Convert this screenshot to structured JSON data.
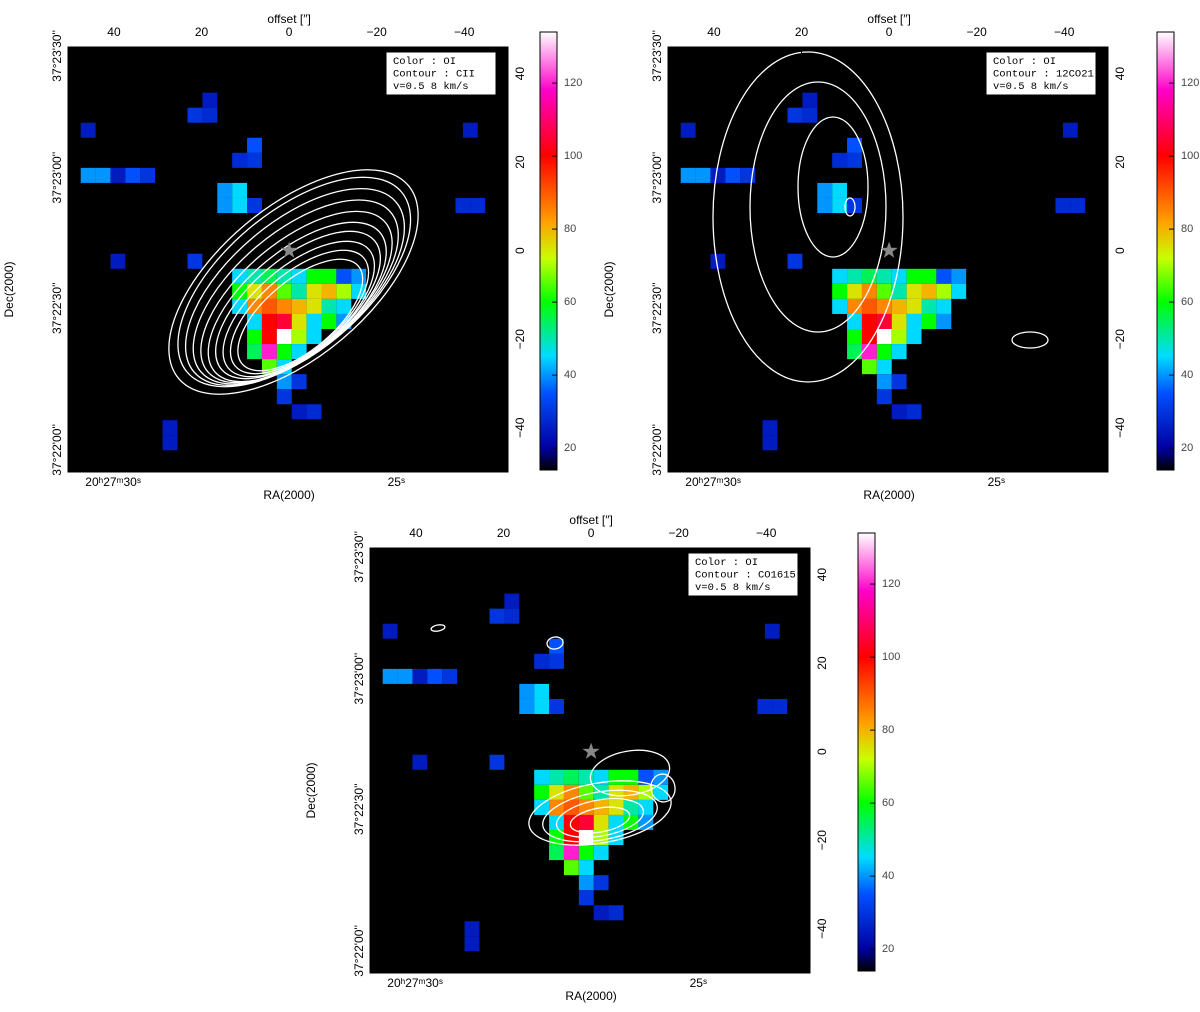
{
  "chart_data": [
    {
      "type": "heatmap",
      "top_label": "offset [″]",
      "xlabel": "RA(2000)",
      "ylabel": "Dec(2000)",
      "annotation": [
        "Color : OI",
        "Contour : CII",
        "v=0.5 8 km/s"
      ],
      "xlim": [
        50.5,
        -50
      ],
      "ylim": [
        -50,
        46
      ],
      "xticks": [
        40,
        20,
        0,
        {
          "value": -20,
          "label": "−20"
        },
        {
          "value": -40,
          "label": "−40"
        }
      ],
      "yticks": [
        40,
        20,
        0,
        {
          "value": -20,
          "label": "−20"
        },
        {
          "value": -40,
          "label": "−40"
        }
      ],
      "ra_ticks": [
        {
          "value": 40.2,
          "label": "20ʰ27ᵐ30ˢ"
        },
        {
          "value": -24.5,
          "label": "25ˢ"
        }
      ],
      "dec_ticks": [
        {
          "value": 44,
          "label": "37°23'30''"
        },
        {
          "value": 16.5,
          "label": "37°23'00''"
        },
        {
          "value": -13,
          "label": "37°22'30''"
        },
        {
          "value": -45,
          "label": "37°22'00''"
        }
      ],
      "clim": [
        14,
        134
      ],
      "cticks": [
        20,
        40,
        60,
        80,
        100,
        120
      ],
      "x": [
        11.3,
        7.9,
        4.5,
        1.1,
        -2.3,
        -5.7,
        -9.1,
        -12.5,
        -15.9,
        11.3,
        7.9,
        4.5,
        1.1,
        -2.3,
        -5.7,
        -9.1,
        -12.5,
        -15.9,
        11.3,
        7.9,
        4.5,
        1.1,
        -2.3,
        -5.7,
        -9.1,
        -12.5,
        7.9,
        4.5,
        1.1,
        -2.3,
        -5.7,
        -9.1,
        -12.5,
        7.9,
        4.5,
        1.1,
        -2.3,
        -5.7,
        7.9,
        4.5,
        1.1,
        -2.3,
        4.5,
        1.1,
        1.1,
        -2.3,
        1.1,
        -2.3,
        -5.7,
        14.7,
        11.3,
        7.9,
        14.7,
        11.3,
        11.3,
        7.9,
        7.9,
        21.5,
        18.1,
        18.1,
        45.9,
        42.5,
        39.1,
        35.7,
        32.3,
        45.9,
        -39.7,
        -43.1,
        -41.4,
        39.1,
        21.5,
        27.2,
        27.2
      ],
      "y": [
        -5.8,
        -5.8,
        -5.8,
        -5.8,
        -5.8,
        -5.8,
        -5.8,
        -5.8,
        -5.8,
        -9.2,
        -9.2,
        -9.2,
        -9.2,
        -9.2,
        -9.2,
        -9.2,
        -9.2,
        -9.2,
        -12.6,
        -12.6,
        -12.6,
        -12.6,
        -12.6,
        -12.6,
        -12.6,
        -12.6,
        -16,
        -16,
        -16,
        -16,
        -16,
        -16,
        -16,
        -19.4,
        -19.4,
        -19.4,
        -19.4,
        -19.4,
        -22.8,
        -22.8,
        -22.8,
        -22.8,
        -26.2,
        -26.2,
        -29.6,
        -29.6,
        -33,
        -36.4,
        -36.4,
        10.2,
        10.2,
        10.2,
        13.6,
        13.6,
        20.4,
        20.4,
        23.8,
        30.6,
        30.6,
        34,
        17,
        17,
        17,
        17,
        17,
        27.2,
        10.2,
        10.2,
        27.2,
        -2.4,
        -2.4,
        -40,
        -43.4
      ],
      "values": [
        45,
        50,
        55,
        50,
        45,
        60,
        60,
        35,
        40,
        60,
        75,
        85,
        65,
        50,
        75,
        80,
        70,
        45,
        45,
        85,
        90,
        85,
        80,
        75,
        50,
        45,
        45,
        100,
        105,
        75,
        45,
        60,
        40,
        60,
        100,
        134,
        70,
        45,
        55,
        120,
        60,
        45,
        65,
        45,
        40,
        30,
        30,
        25,
        28,
        40,
        45,
        30,
        40,
        45,
        28,
        30,
        35,
        30,
        28,
        25,
        40,
        40,
        25,
        35,
        30,
        25,
        28,
        28,
        25,
        25,
        30,
        25,
        25
      ]
    },
    {
      "type": "heatmap",
      "top_label": "offset [″]",
      "xlabel": "RA(2000)",
      "ylabel": "Dec(2000)",
      "annotation": [
        "Color : OI",
        "Contour : 12CO21",
        "v=0.5 8 km/s"
      ],
      "xlim": [
        50.5,
        -50
      ],
      "ylim": [
        -50,
        46
      ],
      "xticks": [
        40,
        20,
        0,
        {
          "value": -20,
          "label": "−20"
        },
        {
          "value": -40,
          "label": "−40"
        }
      ],
      "yticks": [
        40,
        20,
        0,
        {
          "value": -20,
          "label": "−20"
        },
        {
          "value": -40,
          "label": "−40"
        }
      ],
      "ra_ticks": [
        {
          "value": 40.2,
          "label": "20ʰ27ᵐ30ˢ"
        },
        {
          "value": -24.5,
          "label": "25ˢ"
        }
      ],
      "dec_ticks": [
        {
          "value": 44,
          "label": "37°23'30''"
        },
        {
          "value": 16.5,
          "label": "37°23'00''"
        },
        {
          "value": -13,
          "label": "37°22'30''"
        },
        {
          "value": -45,
          "label": "37°22'00''"
        }
      ],
      "clim": [
        14,
        134
      ],
      "cticks": [
        20,
        40,
        60,
        80,
        100,
        120
      ],
      "x": [
        11.3,
        7.9,
        4.5,
        1.1,
        -2.3,
        -5.7,
        -9.1,
        -12.5,
        -15.9,
        11.3,
        7.9,
        4.5,
        1.1,
        -2.3,
        -5.7,
        -9.1,
        -12.5,
        -15.9,
        11.3,
        7.9,
        4.5,
        1.1,
        -2.3,
        -5.7,
        -9.1,
        -12.5,
        7.9,
        4.5,
        1.1,
        -2.3,
        -5.7,
        -9.1,
        -12.5,
        7.9,
        4.5,
        1.1,
        -2.3,
        -5.7,
        7.9,
        4.5,
        1.1,
        -2.3,
        4.5,
        1.1,
        1.1,
        -2.3,
        1.1,
        -2.3,
        -5.7,
        14.7,
        11.3,
        7.9,
        14.7,
        11.3,
        11.3,
        7.9,
        7.9,
        21.5,
        18.1,
        18.1,
        45.9,
        42.5,
        39.1,
        35.7,
        32.3,
        45.9,
        -39.7,
        -43.1,
        -41.4,
        39.1,
        21.5,
        27.2,
        27.2
      ],
      "y": [
        -5.8,
        -5.8,
        -5.8,
        -5.8,
        -5.8,
        -5.8,
        -5.8,
        -5.8,
        -5.8,
        -9.2,
        -9.2,
        -9.2,
        -9.2,
        -9.2,
        -9.2,
        -9.2,
        -9.2,
        -9.2,
        -12.6,
        -12.6,
        -12.6,
        -12.6,
        -12.6,
        -12.6,
        -12.6,
        -12.6,
        -16,
        -16,
        -16,
        -16,
        -16,
        -16,
        -16,
        -19.4,
        -19.4,
        -19.4,
        -19.4,
        -19.4,
        -22.8,
        -22.8,
        -22.8,
        -22.8,
        -26.2,
        -26.2,
        -29.6,
        -29.6,
        -33,
        -36.4,
        -36.4,
        10.2,
        10.2,
        10.2,
        13.6,
        13.6,
        20.4,
        20.4,
        23.8,
        30.6,
        30.6,
        34,
        17,
        17,
        17,
        17,
        17,
        27.2,
        10.2,
        10.2,
        27.2,
        -2.4,
        -2.4,
        -40,
        -43.4
      ],
      "values": [
        45,
        50,
        55,
        50,
        45,
        60,
        60,
        35,
        40,
        60,
        75,
        85,
        65,
        50,
        75,
        80,
        70,
        45,
        45,
        85,
        90,
        85,
        80,
        75,
        50,
        45,
        45,
        100,
        105,
        75,
        45,
        60,
        40,
        60,
        100,
        134,
        70,
        45,
        55,
        120,
        60,
        45,
        65,
        45,
        40,
        30,
        30,
        25,
        28,
        40,
        45,
        30,
        40,
        45,
        28,
        30,
        35,
        30,
        28,
        25,
        40,
        40,
        25,
        35,
        30,
        25,
        28,
        28,
        25,
        25,
        30,
        25,
        25
      ]
    },
    {
      "type": "heatmap",
      "top_label": "offset [″]",
      "xlabel": "RA(2000)",
      "ylabel": "Dec(2000)",
      "annotation": [
        "Color : OI",
        "Contour : CO1615",
        "v=0.5 8 km/s"
      ],
      "xlim": [
        50.5,
        -50
      ],
      "ylim": [
        -50,
        46
      ],
      "xticks": [
        40,
        20,
        0,
        {
          "value": -20,
          "label": "−20"
        },
        {
          "value": -40,
          "label": "−40"
        }
      ],
      "yticks": [
        40,
        20,
        0,
        {
          "value": -20,
          "label": "−20"
        },
        {
          "value": -40,
          "label": "−40"
        }
      ],
      "ra_ticks": [
        {
          "value": 40.2,
          "label": "20ʰ27ᵐ30ˢ"
        },
        {
          "value": -24.5,
          "label": "25ˢ"
        }
      ],
      "dec_ticks": [
        {
          "value": 44,
          "label": "37°23'30''"
        },
        {
          "value": 16.5,
          "label": "37°23'00''"
        },
        {
          "value": -13,
          "label": "37°22'30''"
        },
        {
          "value": -45,
          "label": "37°22'00''"
        }
      ],
      "clim": [
        14,
        134
      ],
      "cticks": [
        20,
        40,
        60,
        80,
        100,
        120
      ],
      "x": [
        11.3,
        7.9,
        4.5,
        1.1,
        -2.3,
        -5.7,
        -9.1,
        -12.5,
        -15.9,
        11.3,
        7.9,
        4.5,
        1.1,
        -2.3,
        -5.7,
        -9.1,
        -12.5,
        -15.9,
        11.3,
        7.9,
        4.5,
        1.1,
        -2.3,
        -5.7,
        -9.1,
        -12.5,
        7.9,
        4.5,
        1.1,
        -2.3,
        -5.7,
        -9.1,
        -12.5,
        7.9,
        4.5,
        1.1,
        -2.3,
        -5.7,
        7.9,
        4.5,
        1.1,
        -2.3,
        4.5,
        1.1,
        1.1,
        -2.3,
        1.1,
        -2.3,
        -5.7,
        14.7,
        11.3,
        7.9,
        14.7,
        11.3,
        11.3,
        7.9,
        7.9,
        21.5,
        18.1,
        18.1,
        45.9,
        42.5,
        39.1,
        35.7,
        32.3,
        45.9,
        -39.7,
        -43.1,
        -41.4,
        39.1,
        21.5,
        27.2,
        27.2
      ],
      "y": [
        -5.8,
        -5.8,
        -5.8,
        -5.8,
        -5.8,
        -5.8,
        -5.8,
        -5.8,
        -5.8,
        -9.2,
        -9.2,
        -9.2,
        -9.2,
        -9.2,
        -9.2,
        -9.2,
        -9.2,
        -9.2,
        -12.6,
        -12.6,
        -12.6,
        -12.6,
        -12.6,
        -12.6,
        -12.6,
        -12.6,
        -16,
        -16,
        -16,
        -16,
        -16,
        -16,
        -16,
        -19.4,
        -19.4,
        -19.4,
        -19.4,
        -19.4,
        -22.8,
        -22.8,
        -22.8,
        -22.8,
        -26.2,
        -26.2,
        -29.6,
        -29.6,
        -33,
        -36.4,
        -36.4,
        10.2,
        10.2,
        10.2,
        13.6,
        13.6,
        20.4,
        20.4,
        23.8,
        30.6,
        30.6,
        34,
        17,
        17,
        17,
        17,
        17,
        27.2,
        10.2,
        10.2,
        27.2,
        -2.4,
        -2.4,
        -40,
        -43.4
      ],
      "values": [
        45,
        50,
        55,
        50,
        45,
        60,
        60,
        35,
        40,
        60,
        75,
        85,
        65,
        50,
        75,
        80,
        70,
        45,
        45,
        85,
        90,
        85,
        80,
        75,
        50,
        45,
        45,
        100,
        105,
        75,
        45,
        60,
        40,
        60,
        100,
        134,
        70,
        45,
        55,
        120,
        60,
        45,
        65,
        45,
        40,
        30,
        30,
        25,
        28,
        40,
        45,
        30,
        40,
        45,
        28,
        30,
        35,
        30,
        28,
        25,
        40,
        40,
        25,
        35,
        30,
        25,
        28,
        28,
        25,
        25,
        30,
        25,
        25
      ]
    }
  ]
}
